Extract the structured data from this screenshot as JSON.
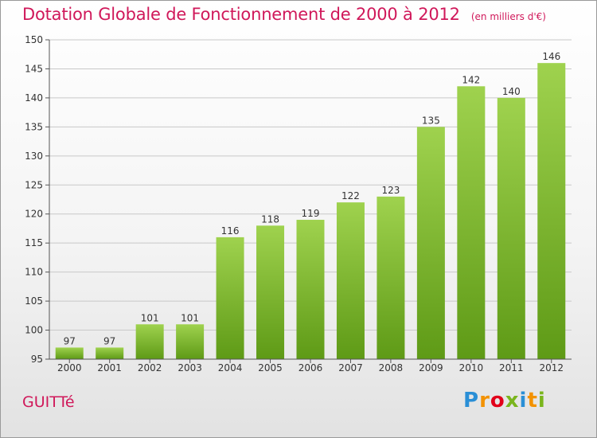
{
  "title": "Dotation Globale de Fonctionnement de 2000 à 2012",
  "unit_note": "(en milliers d'€)",
  "commune": "GUITTé",
  "logo": {
    "text": "Proxiti",
    "letters": [
      {
        "ch": "P",
        "color": "#2a8fd6"
      },
      {
        "ch": "r",
        "color": "#f39200"
      },
      {
        "ch": "o",
        "color": "#e2001a"
      },
      {
        "ch": "x",
        "color": "#7ab51d"
      },
      {
        "ch": "i",
        "color": "#2a8fd6"
      },
      {
        "ch": "t",
        "color": "#f39200"
      },
      {
        "ch": "i",
        "color": "#7ab51d"
      }
    ]
  },
  "colors": {
    "title": "#d0185a",
    "bar_top": "#9fd24e",
    "bar_bottom": "#5e9a16",
    "grid": "#c8c8c8",
    "axis_text": "#333333"
  },
  "chart_data": {
    "type": "bar",
    "categories": [
      "2000",
      "2001",
      "2002",
      "2003",
      "2004",
      "2005",
      "2006",
      "2007",
      "2008",
      "2009",
      "2010",
      "2011",
      "2012"
    ],
    "values": [
      97,
      97,
      101,
      101,
      116,
      118,
      119,
      122,
      123,
      135,
      142,
      140,
      146
    ],
    "ylim": [
      95,
      150
    ],
    "yticks": [
      95,
      100,
      105,
      110,
      115,
      120,
      125,
      130,
      135,
      140,
      145,
      150
    ],
    "grid": true,
    "data_labels": true
  }
}
